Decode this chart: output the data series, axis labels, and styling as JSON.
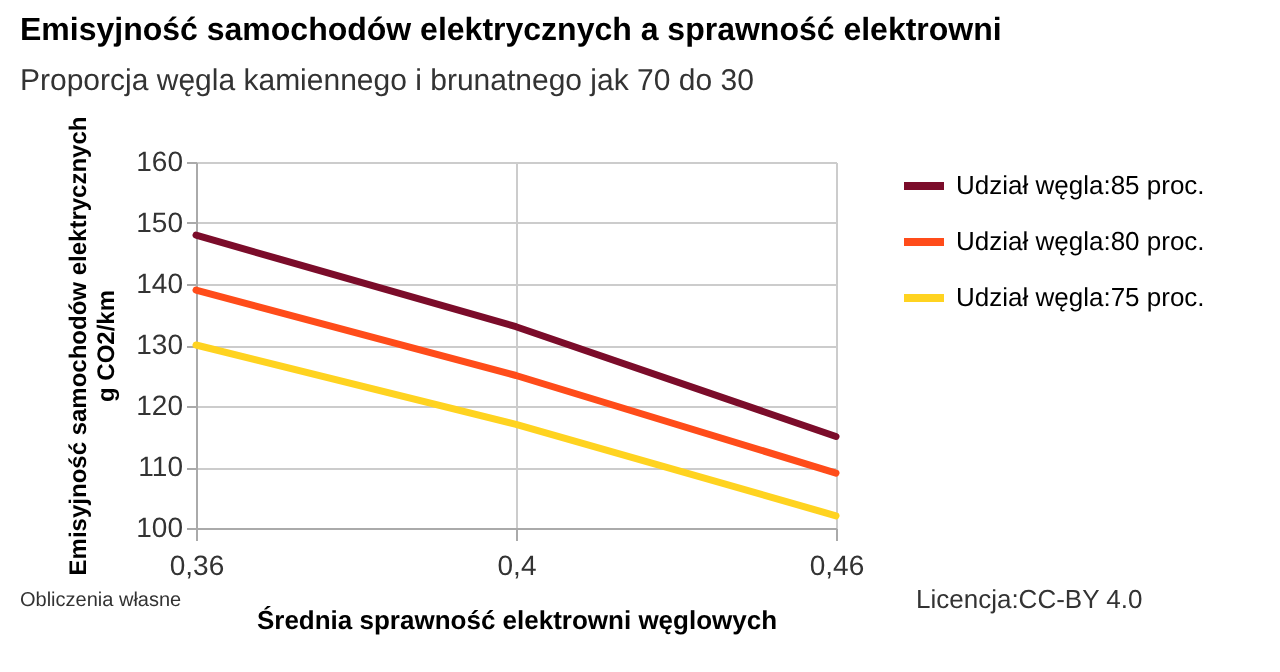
{
  "chart_data": {
    "type": "line",
    "title": "Emisyjność samochodów elektrycznych a sprawność elektrowni",
    "subtitle": "Proporcja węgla kamiennego i brunatnego jak 70 do 30",
    "xlabel": "Średnia sprawność elektrowni węglowych",
    "ylabel": "Emisyjność samochodów elektrycznych g CO2/km",
    "categories": [
      "0,36",
      "0,4",
      "0,46"
    ],
    "series": [
      {
        "name": "Udział węgla:85 proc.",
        "color": "#7b0c2a",
        "values": [
          148,
          133,
          115
        ]
      },
      {
        "name": "Udział węgla:80 proc.",
        "color": "#ff4c1a",
        "values": [
          139,
          125,
          109
        ]
      },
      {
        "name": "Udział węgla:75 proc.",
        "color": "#ffd320",
        "values": [
          130,
          117,
          102
        ]
      }
    ],
    "ylim": [
      100,
      160
    ],
    "yticks": [
      100,
      110,
      120,
      130,
      140,
      150,
      160
    ],
    "grid": true,
    "legend": "right",
    "marker": "none",
    "annotations": [
      "Obliczenia własne",
      "Licencja:CC-BY 4.0"
    ]
  }
}
